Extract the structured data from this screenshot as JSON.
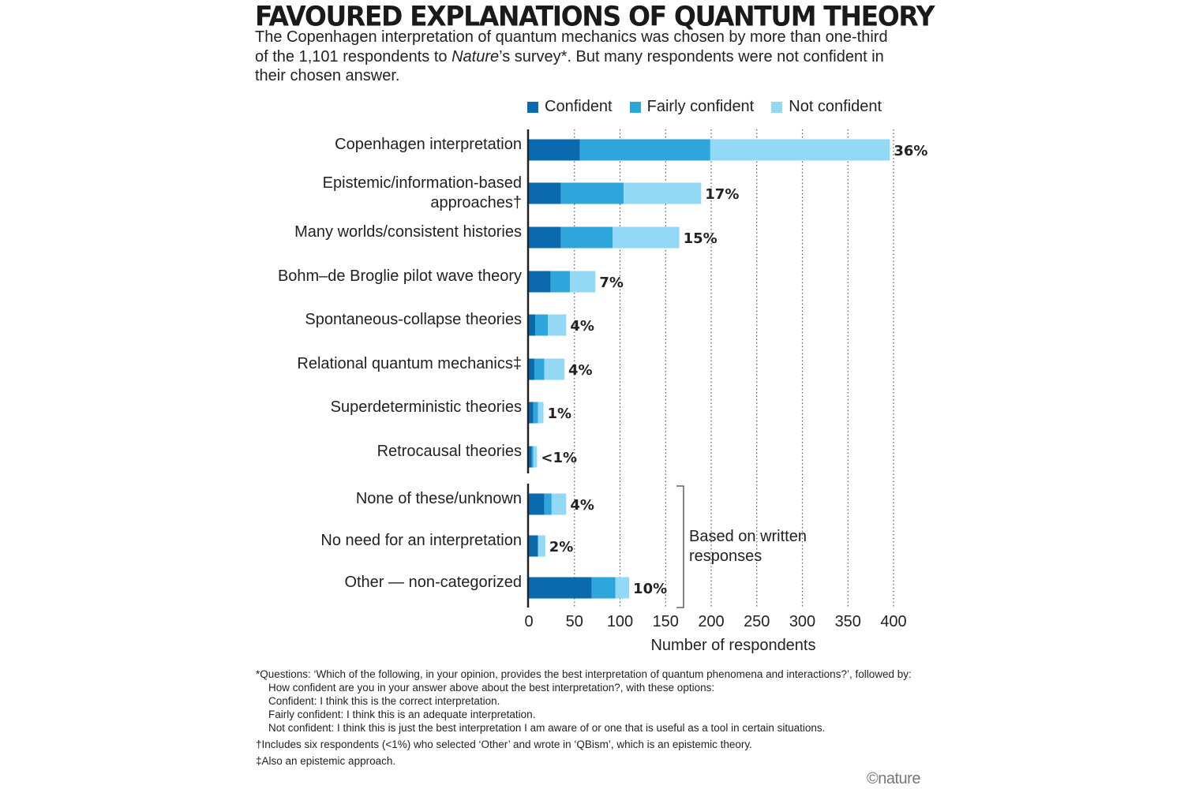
{
  "title": "FAVOURED EXPLANATIONS OF QUANTUM THEORY",
  "subtitle": {
    "part1": "The Copenhagen interpretation of quantum mechanics was chosen by more than one-third of the 1,101 respondents to ",
    "italic": "Nature",
    "part2": "’s survey*. But many respondents were not confident in their chosen answer."
  },
  "colors": {
    "confident": "#0a6aad",
    "fairly_confident": "#2ea6dc",
    "not_confident": "#93d8f5"
  },
  "chart_data": {
    "type": "bar",
    "orientation": "horizontal",
    "stacked": true,
    "categories": [
      [
        "Copenhagen interpretation"
      ],
      [
        "Epistemic/information-based",
        "approaches†"
      ],
      [
        "Many worlds/consistent histories"
      ],
      [
        "Bohm–de Broglie pilot wave theory"
      ],
      [
        "Spontaneous-collapse theories"
      ],
      [
        "Relational quantum mechanics‡"
      ],
      [
        "Superdeterministic theories"
      ],
      [
        "Retrocausal theories"
      ],
      [
        "None of these/unknown"
      ],
      [
        "No need for an interpretation"
      ],
      [
        "Other — non-categorized"
      ]
    ],
    "series": [
      {
        "name": "Confident",
        "values": [
          56,
          35,
          35,
          24,
          7,
          6,
          5,
          3,
          17,
          10,
          69
        ]
      },
      {
        "name": "Fairly confident",
        "values": [
          143,
          69,
          57,
          21,
          14,
          11,
          5,
          2,
          8,
          0,
          26
        ]
      },
      {
        "name": "Not confident",
        "values": [
          197,
          85,
          73,
          28,
          20,
          22,
          6,
          4,
          16,
          8,
          15
        ]
      }
    ],
    "percent_labels": [
      "36%",
      "17%",
      "15%",
      "7%",
      "4%",
      "4%",
      "1%",
      "<1%",
      "4%",
      "2%",
      "10%"
    ],
    "xlabel": "Number of respondents",
    "xlim": [
      0,
      400
    ],
    "xticks": [
      "0",
      "50",
      "100",
      "150",
      "200",
      "250",
      "300",
      "350",
      "400"
    ],
    "grid": "vertical dotted",
    "group_annotation": [
      "Based on written",
      "responses"
    ]
  },
  "footnotes": {
    "q_main": "*Questions: ‘Which of the following, in your opinion, provides the best interpretation of quantum phenomena and interactions?’, followed by:",
    "q_follow": "How confident are you in your answer above about the best interpretation?, with these options:",
    "opt1": "Confident: I think this is the correct interpretation.",
    "opt2": "Fairly confident: I think this is an adequate interpretation.",
    "opt3": "Not confident: I think this is just the best interpretation I am aware of or one that is useful as a tool in certain situations.",
    "dagger": "†Includes six respondents (<1%) who selected ‘Other’ and wrote in ‘QBism’, which is an epistemic theory.",
    "ddagger": "‡Also an epistemic approach."
  },
  "credit": "©nature"
}
